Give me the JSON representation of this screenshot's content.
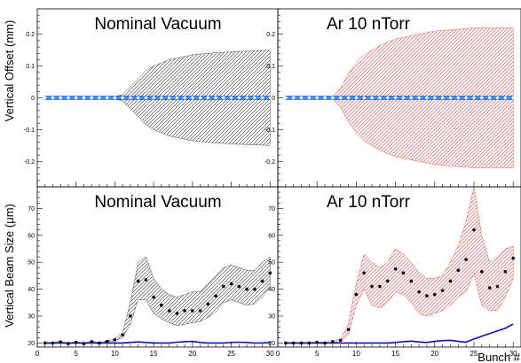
{
  "chart_data": [
    {
      "type": "area",
      "title": "Nominal Vacuum",
      "ylabel": "Vertical Offset (mm)",
      "xlabel": "",
      "xlim": [
        0,
        31
      ],
      "ylim": [
        -0.28,
        0.28
      ],
      "xticks": [],
      "yticks": [
        "-0.2",
        "-0.1",
        "0",
        "0.1",
        "0.2"
      ],
      "band_color": "#555555",
      "marker_color": "#1e5fd6",
      "series": [
        {
          "x": [
            1,
            2,
            3,
            4,
            5,
            6,
            7,
            8,
            9,
            10,
            11,
            12,
            13,
            14,
            15,
            16,
            17,
            18,
            19,
            20,
            21,
            22,
            23,
            24,
            25,
            26,
            27,
            28,
            29,
            30
          ],
          "values": [
            0,
            0,
            0,
            0,
            0,
            0,
            0,
            0,
            0,
            0,
            0,
            0,
            0,
            0,
            0,
            0,
            0,
            0,
            0,
            0,
            0,
            0,
            0,
            0,
            0,
            0,
            0,
            0,
            0,
            0
          ],
          "band_upper": [
            0.004,
            0.004,
            0.004,
            0.004,
            0.004,
            0.004,
            0.004,
            0.004,
            0.004,
            0.004,
            0.01,
            0.035,
            0.06,
            0.085,
            0.1,
            0.11,
            0.12,
            0.125,
            0.13,
            0.135,
            0.138,
            0.14,
            0.142,
            0.143,
            0.145,
            0.146,
            0.147,
            0.148,
            0.149,
            0.15
          ],
          "band_lower": [
            -0.004,
            -0.004,
            -0.004,
            -0.004,
            -0.004,
            -0.004,
            -0.004,
            -0.004,
            -0.004,
            -0.004,
            -0.01,
            -0.035,
            -0.06,
            -0.085,
            -0.1,
            -0.11,
            -0.12,
            -0.125,
            -0.13,
            -0.135,
            -0.138,
            -0.14,
            -0.142,
            -0.143,
            -0.145,
            -0.146,
            -0.147,
            -0.148,
            -0.149,
            -0.15
          ]
        }
      ]
    },
    {
      "type": "area",
      "title": "Ar 10 nTorr",
      "ylabel": "",
      "xlabel": "",
      "xlim": [
        0,
        31
      ],
      "ylim": [
        -0.28,
        0.28
      ],
      "xticks": [],
      "yticks": [
        "-0.2",
        "-0.1",
        "0",
        "0.1",
        "0.2"
      ],
      "band_color": "#e06060",
      "marker_color": "#1e5fd6",
      "series": [
        {
          "x": [
            1,
            2,
            3,
            4,
            5,
            6,
            7,
            8,
            9,
            10,
            11,
            12,
            13,
            14,
            15,
            16,
            17,
            18,
            19,
            20,
            21,
            22,
            23,
            24,
            25,
            26,
            27,
            28,
            29,
            30
          ],
          "values": [
            0,
            0,
            0,
            0,
            0,
            0,
            0,
            0,
            0,
            0,
            0,
            0,
            0,
            0,
            0,
            0,
            0,
            0,
            0,
            0,
            0,
            0,
            0,
            0,
            0,
            0,
            0,
            0,
            0,
            0
          ],
          "band_upper": [
            0.004,
            0.004,
            0.004,
            0.004,
            0.004,
            0.004,
            0.004,
            0.03,
            0.075,
            0.11,
            0.135,
            0.15,
            0.165,
            0.175,
            0.185,
            0.19,
            0.195,
            0.2,
            0.205,
            0.21,
            0.212,
            0.214,
            0.216,
            0.218,
            0.22,
            0.22,
            0.22,
            0.22,
            0.22,
            0.22
          ],
          "band_lower": [
            -0.004,
            -0.004,
            -0.004,
            -0.004,
            -0.004,
            -0.004,
            -0.004,
            -0.03,
            -0.075,
            -0.11,
            -0.135,
            -0.15,
            -0.165,
            -0.175,
            -0.185,
            -0.19,
            -0.195,
            -0.2,
            -0.205,
            -0.21,
            -0.212,
            -0.214,
            -0.216,
            -0.218,
            -0.22,
            -0.22,
            -0.22,
            -0.22,
            -0.22,
            -0.22
          ]
        }
      ]
    },
    {
      "type": "area",
      "title": "Nominal Vacuum",
      "ylabel": "Vertical Beam Size (μm)",
      "xlabel": "",
      "xlim": [
        0,
        31
      ],
      "ylim": [
        18.5,
        78
      ],
      "xticks": [
        "0",
        "5",
        "10",
        "15",
        "20",
        "25",
        "30"
      ],
      "yticks": [
        "20",
        "30",
        "40",
        "50",
        "60",
        "70"
      ],
      "band_color": "#555555",
      "marker_color": "#000000",
      "baseline_color": "#1010b0",
      "series": [
        {
          "x": [
            1,
            2,
            3,
            4,
            5,
            6,
            7,
            8,
            9,
            10,
            11,
            12,
            13,
            14,
            15,
            16,
            17,
            18,
            19,
            20,
            21,
            22,
            23,
            24,
            25,
            26,
            27,
            28,
            29,
            30
          ],
          "values": [
            20,
            20,
            20.4,
            19.8,
            20.3,
            19.8,
            20.5,
            20,
            20.6,
            21.2,
            23,
            30,
            43,
            43.5,
            37,
            34,
            32,
            31,
            32,
            32,
            32,
            34.5,
            37.5,
            41,
            42,
            41,
            40,
            40,
            43,
            46
          ],
          "band_upper": [
            20.2,
            20.2,
            20.6,
            20,
            20.5,
            20,
            20.7,
            20.2,
            20.8,
            21.6,
            24,
            35,
            50,
            52,
            44,
            40,
            38,
            37,
            38,
            39,
            39,
            42,
            45,
            48,
            49,
            48,
            47,
            47,
            50,
            52
          ],
          "band_lower": [
            19.8,
            19.8,
            20.2,
            19.6,
            20.1,
            19.6,
            20.3,
            19.8,
            20.4,
            20.8,
            22,
            27,
            36,
            36,
            31,
            29,
            27.5,
            26.5,
            27,
            27.5,
            28,
            29.5,
            31.5,
            35,
            36,
            35,
            34,
            34.5,
            37,
            41
          ],
          "baseline": [
            20,
            20,
            20,
            20,
            20,
            20,
            20,
            20,
            20,
            20,
            20,
            20.2,
            20.4,
            20.2,
            20,
            20,
            20,
            20.3,
            20.5,
            20.6,
            20.2,
            20,
            20,
            20,
            20.2,
            20.3,
            20.2,
            20,
            20,
            20.2
          ]
        }
      ]
    },
    {
      "type": "area",
      "title": "Ar 10 nTorr",
      "ylabel": "",
      "xlabel": "Bunch #",
      "xlim": [
        0,
        31
      ],
      "ylim": [
        18.5,
        78
      ],
      "xticks": [
        "0",
        "5",
        "10",
        "15",
        "20",
        "25",
        "30"
      ],
      "yticks": [
        "20",
        "30",
        "40",
        "50",
        "60",
        "70"
      ],
      "band_color": "#e06060",
      "marker_color": "#000000",
      "baseline_color": "#1010b0",
      "series": [
        {
          "x": [
            1,
            2,
            3,
            4,
            5,
            6,
            7,
            8,
            9,
            10,
            11,
            12,
            13,
            14,
            15,
            16,
            17,
            18,
            19,
            20,
            21,
            22,
            23,
            24,
            25,
            26,
            27,
            28,
            29,
            30
          ],
          "values": [
            20,
            20,
            20,
            20,
            20.3,
            20,
            20.5,
            21,
            25,
            38,
            46,
            41,
            41,
            43,
            47.5,
            46,
            43,
            39,
            37.5,
            38,
            39.5,
            43,
            47,
            51,
            62,
            46.5,
            40.5,
            41,
            46.5,
            51.5
          ],
          "band_upper": [
            20.2,
            20.2,
            20.2,
            20.2,
            20.5,
            20.2,
            20.8,
            21.5,
            27,
            42,
            53,
            50,
            48,
            50,
            55,
            53,
            50,
            46,
            44,
            44,
            45,
            50,
            56,
            65,
            78,
            60,
            50,
            52,
            55,
            56
          ],
          "band_lower": [
            19.8,
            19.8,
            19.8,
            19.8,
            20.1,
            19.8,
            20.2,
            20.5,
            23,
            34,
            40,
            34,
            33,
            35,
            39,
            38,
            35,
            31,
            30,
            31,
            32,
            34,
            37,
            39,
            46,
            34,
            32,
            32,
            37,
            44
          ],
          "baseline": [
            20,
            20,
            20,
            20,
            20,
            20,
            20,
            20,
            20,
            20,
            20,
            20,
            20,
            20,
            20.2,
            20.5,
            20.7,
            20.4,
            20.2,
            20.6,
            20.9,
            21,
            20.6,
            20.3,
            21.5,
            22.5,
            23.5,
            24.5,
            25.5,
            27
          ]
        }
      ]
    }
  ]
}
